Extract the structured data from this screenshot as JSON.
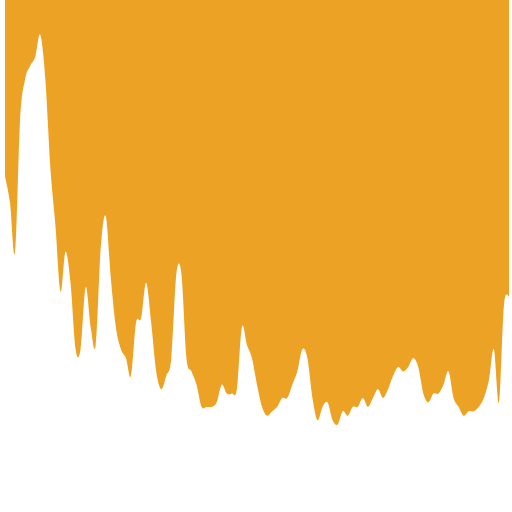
{
  "chart_data": {
    "type": "area",
    "title": "",
    "xlabel": "",
    "ylabel": "",
    "grid": false,
    "legend": "none",
    "fill_color": "#eca224",
    "background_color": "#ffffff",
    "orientation": "inverted",
    "xlim": [
      0,
      100
    ],
    "ylim": [
      0,
      100
    ],
    "x": [
      0,
      1,
      2,
      3,
      4,
      5,
      6,
      7,
      8,
      9,
      10,
      11,
      12,
      13,
      14,
      15,
      16,
      17,
      18,
      19,
      20,
      21,
      22,
      23,
      24,
      25,
      26,
      27,
      28,
      29,
      30,
      31,
      32,
      33,
      34,
      35,
      36,
      37,
      38,
      39,
      40,
      41,
      42,
      43,
      44,
      45,
      46,
      47,
      48,
      49,
      50,
      51,
      52,
      53,
      54,
      55,
      56,
      57,
      58,
      59,
      60,
      61,
      62,
      63,
      64,
      65,
      66,
      67,
      68,
      69,
      70,
      71,
      72,
      73,
      74,
      75,
      76,
      77,
      78,
      79,
      80,
      81,
      82,
      83,
      84,
      85,
      86,
      87,
      88,
      89,
      90,
      91,
      92,
      93,
      94,
      95,
      96,
      97,
      98,
      99,
      100
    ],
    "values": [
      64,
      58,
      47,
      77,
      86,
      89,
      91,
      96,
      86,
      66,
      53,
      38,
      47,
      40,
      25,
      25,
      39,
      30,
      26,
      48,
      55,
      41,
      30,
      25,
      23,
      19,
      31,
      32,
      40,
      31,
      20,
      16,
      19,
      23,
      42,
      42,
      23,
      20,
      17,
      12,
      12,
      12,
      13,
      17,
      15,
      15,
      16,
      30,
      26,
      23,
      17,
      12,
      10,
      11,
      12,
      14,
      14,
      17,
      20,
      25,
      23,
      14,
      9,
      12,
      13,
      9,
      8,
      11,
      10,
      12,
      12,
      14,
      12,
      14,
      16,
      14,
      16,
      19,
      21,
      20,
      21,
      23,
      21,
      15,
      13,
      15,
      15,
      17,
      20,
      14,
      12,
      10,
      11,
      11,
      12,
      14,
      18,
      25,
      13,
      35,
      37
    ]
  }
}
